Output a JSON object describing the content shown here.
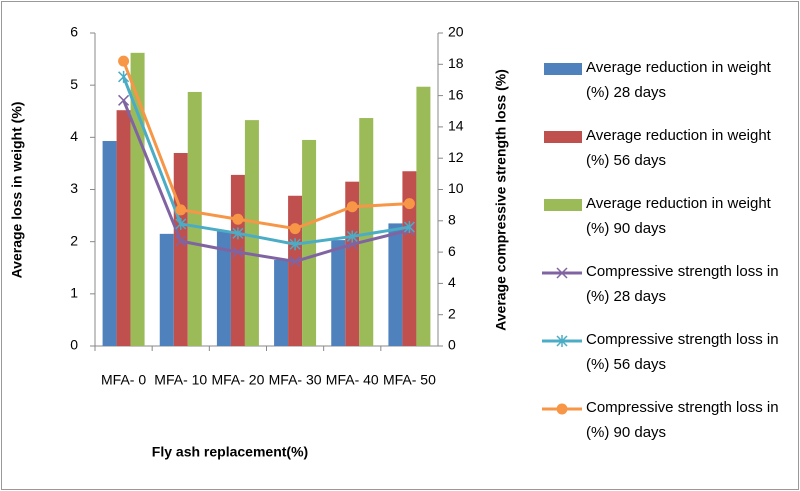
{
  "chart_data": {
    "type": "bar-line",
    "x_label": "Fly ash replacement(%)",
    "y_label": "Average loss in weight (%)",
    "y2_label": "Average compressive strength loss (%)",
    "categories": [
      "MFA- 0",
      "MFA- 10",
      "MFA- 20",
      "MFA- 30",
      "MFA- 40",
      "MFA- 50"
    ],
    "ylim": [
      0,
      6
    ],
    "yticks": [
      0,
      1,
      2,
      3,
      4,
      5,
      6
    ],
    "y2lim": [
      0,
      20
    ],
    "y2ticks": [
      0,
      2,
      4,
      6,
      8,
      10,
      12,
      14,
      16,
      18,
      20
    ],
    "series": [
      {
        "name": "Average reduction in weight (%) 28 days",
        "color": "#4f81bd",
        "kind": "bar",
        "values": [
          3.93,
          2.15,
          2.2,
          1.65,
          2.03,
          2.35
        ]
      },
      {
        "name": "Average reduction in weight (%) 56 days",
        "color": "#c0504d",
        "kind": "bar",
        "values": [
          4.52,
          3.7,
          3.28,
          2.88,
          3.15,
          3.35
        ]
      },
      {
        "name": "Average reduction in weight (%) 90 days",
        "color": "#9bbb59",
        "kind": "bar",
        "values": [
          5.62,
          4.87,
          4.33,
          3.95,
          4.37,
          4.97
        ]
      },
      {
        "name": "Compressive strength loss in (%) 28 days",
        "color": "#8064a2",
        "kind": "line",
        "marker": "x",
        "axis": "y2",
        "values": [
          15.7,
          6.7,
          6.0,
          5.4,
          6.5,
          7.4
        ]
      },
      {
        "name": "Compressive strength loss in (%) 56 days",
        "color": "#4bacc6",
        "kind": "line",
        "marker": "star",
        "axis": "y2",
        "values": [
          17.2,
          7.8,
          7.2,
          6.5,
          7.0,
          7.6
        ]
      },
      {
        "name": "Compressive strength loss in (%) 90 days",
        "color": "#f79646",
        "kind": "line",
        "marker": "circle",
        "axis": "y2",
        "values": [
          18.2,
          8.7,
          8.1,
          7.5,
          8.9,
          9.1
        ]
      }
    ]
  }
}
